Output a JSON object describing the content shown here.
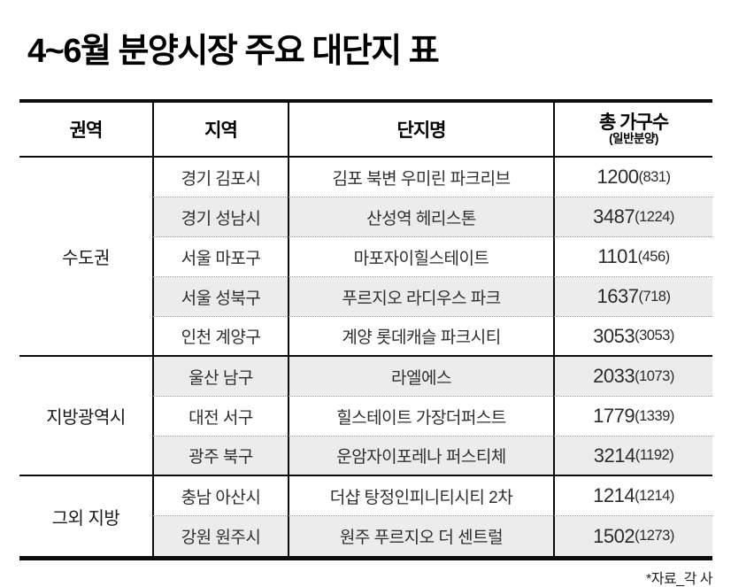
{
  "title": "4~6월 분양시장 주요 대단지 표",
  "source_note": "*자료_각 사",
  "colors": {
    "row_alt_bg": "#ececec",
    "border": "#0d0d0d",
    "text": "#2e2e2e"
  },
  "table": {
    "headers": {
      "region_group": "권역",
      "district": "지역",
      "complex": "단지명",
      "households_line1": "총 가구수",
      "households_line2": "(일반분양)"
    },
    "groups": [
      {
        "label": "수도권"
      },
      {
        "label": "지방광역시"
      },
      {
        "label": "그외 지방"
      }
    ],
    "rows": [
      {
        "district": "경기 김포시",
        "complex": "김포 북변 우미린 파크리브",
        "total": "1200",
        "general": "(831)"
      },
      {
        "district": "경기 성남시",
        "complex": "산성역 헤리스톤",
        "total": "3487",
        "general": "(1224)"
      },
      {
        "district": "서울 마포구",
        "complex": "마포자이힐스테이트",
        "total": "1101",
        "general": "(456)"
      },
      {
        "district": "서울 성북구",
        "complex": "푸르지오 라디우스 파크",
        "total": "1637",
        "general": "(718)"
      },
      {
        "district": "인천 계양구",
        "complex": "계양 롯데캐슬 파크시티",
        "total": "3053",
        "general": "(3053)"
      },
      {
        "district": "울산 남구",
        "complex": "라엘에스",
        "total": "2033",
        "general": "(1073)"
      },
      {
        "district": "대전 서구",
        "complex": "힐스테이트 가장더퍼스트",
        "total": "1779",
        "general": "(1339)"
      },
      {
        "district": "광주 북구",
        "complex": "운암자이포레나 퍼스티체",
        "total": "3214",
        "general": "(1192)"
      },
      {
        "district": "충남 아산시",
        "complex": "더샵 탕정인피니티시티 2차",
        "total": "1214",
        "general": "(1214)"
      },
      {
        "district": "강원 원주시",
        "complex": "원주 푸르지오 더 센트럴",
        "total": "1502",
        "general": "(1273)"
      }
    ]
  },
  "chart_data": {
    "type": "table",
    "title": "4~6월 분양시장 주요 대단지 표",
    "columns": [
      "권역",
      "지역",
      "단지명",
      "총 가구수(일반분양)"
    ],
    "rows": [
      [
        "수도권",
        "경기 김포시",
        "김포 북변 우미린 파크리브",
        "1200(831)"
      ],
      [
        "수도권",
        "경기 성남시",
        "산성역 헤리스톤",
        "3487(1224)"
      ],
      [
        "수도권",
        "서울 마포구",
        "마포자이힐스테이트",
        "1101(456)"
      ],
      [
        "수도권",
        "서울 성북구",
        "푸르지오 라디우스 파크",
        "1637(718)"
      ],
      [
        "수도권",
        "인천 계양구",
        "계양 롯데캐슬 파크시티",
        "3053(3053)"
      ],
      [
        "지방광역시",
        "울산 남구",
        "라엘에스",
        "2033(1073)"
      ],
      [
        "지방광역시",
        "대전 서구",
        "힐스테이트 가장더퍼스트",
        "1779(1339)"
      ],
      [
        "지방광역시",
        "광주 북구",
        "운암자이포레나 퍼스티체",
        "3214(1192)"
      ],
      [
        "그외 지방",
        "충남 아산시",
        "더샵 탕정인피니티시티 2차",
        "1214(1214)"
      ],
      [
        "그외 지방",
        "강원 원주시",
        "원주 푸르지오 더 센트럴",
        "1502(1273)"
      ]
    ],
    "source": "*자료_각 사"
  }
}
